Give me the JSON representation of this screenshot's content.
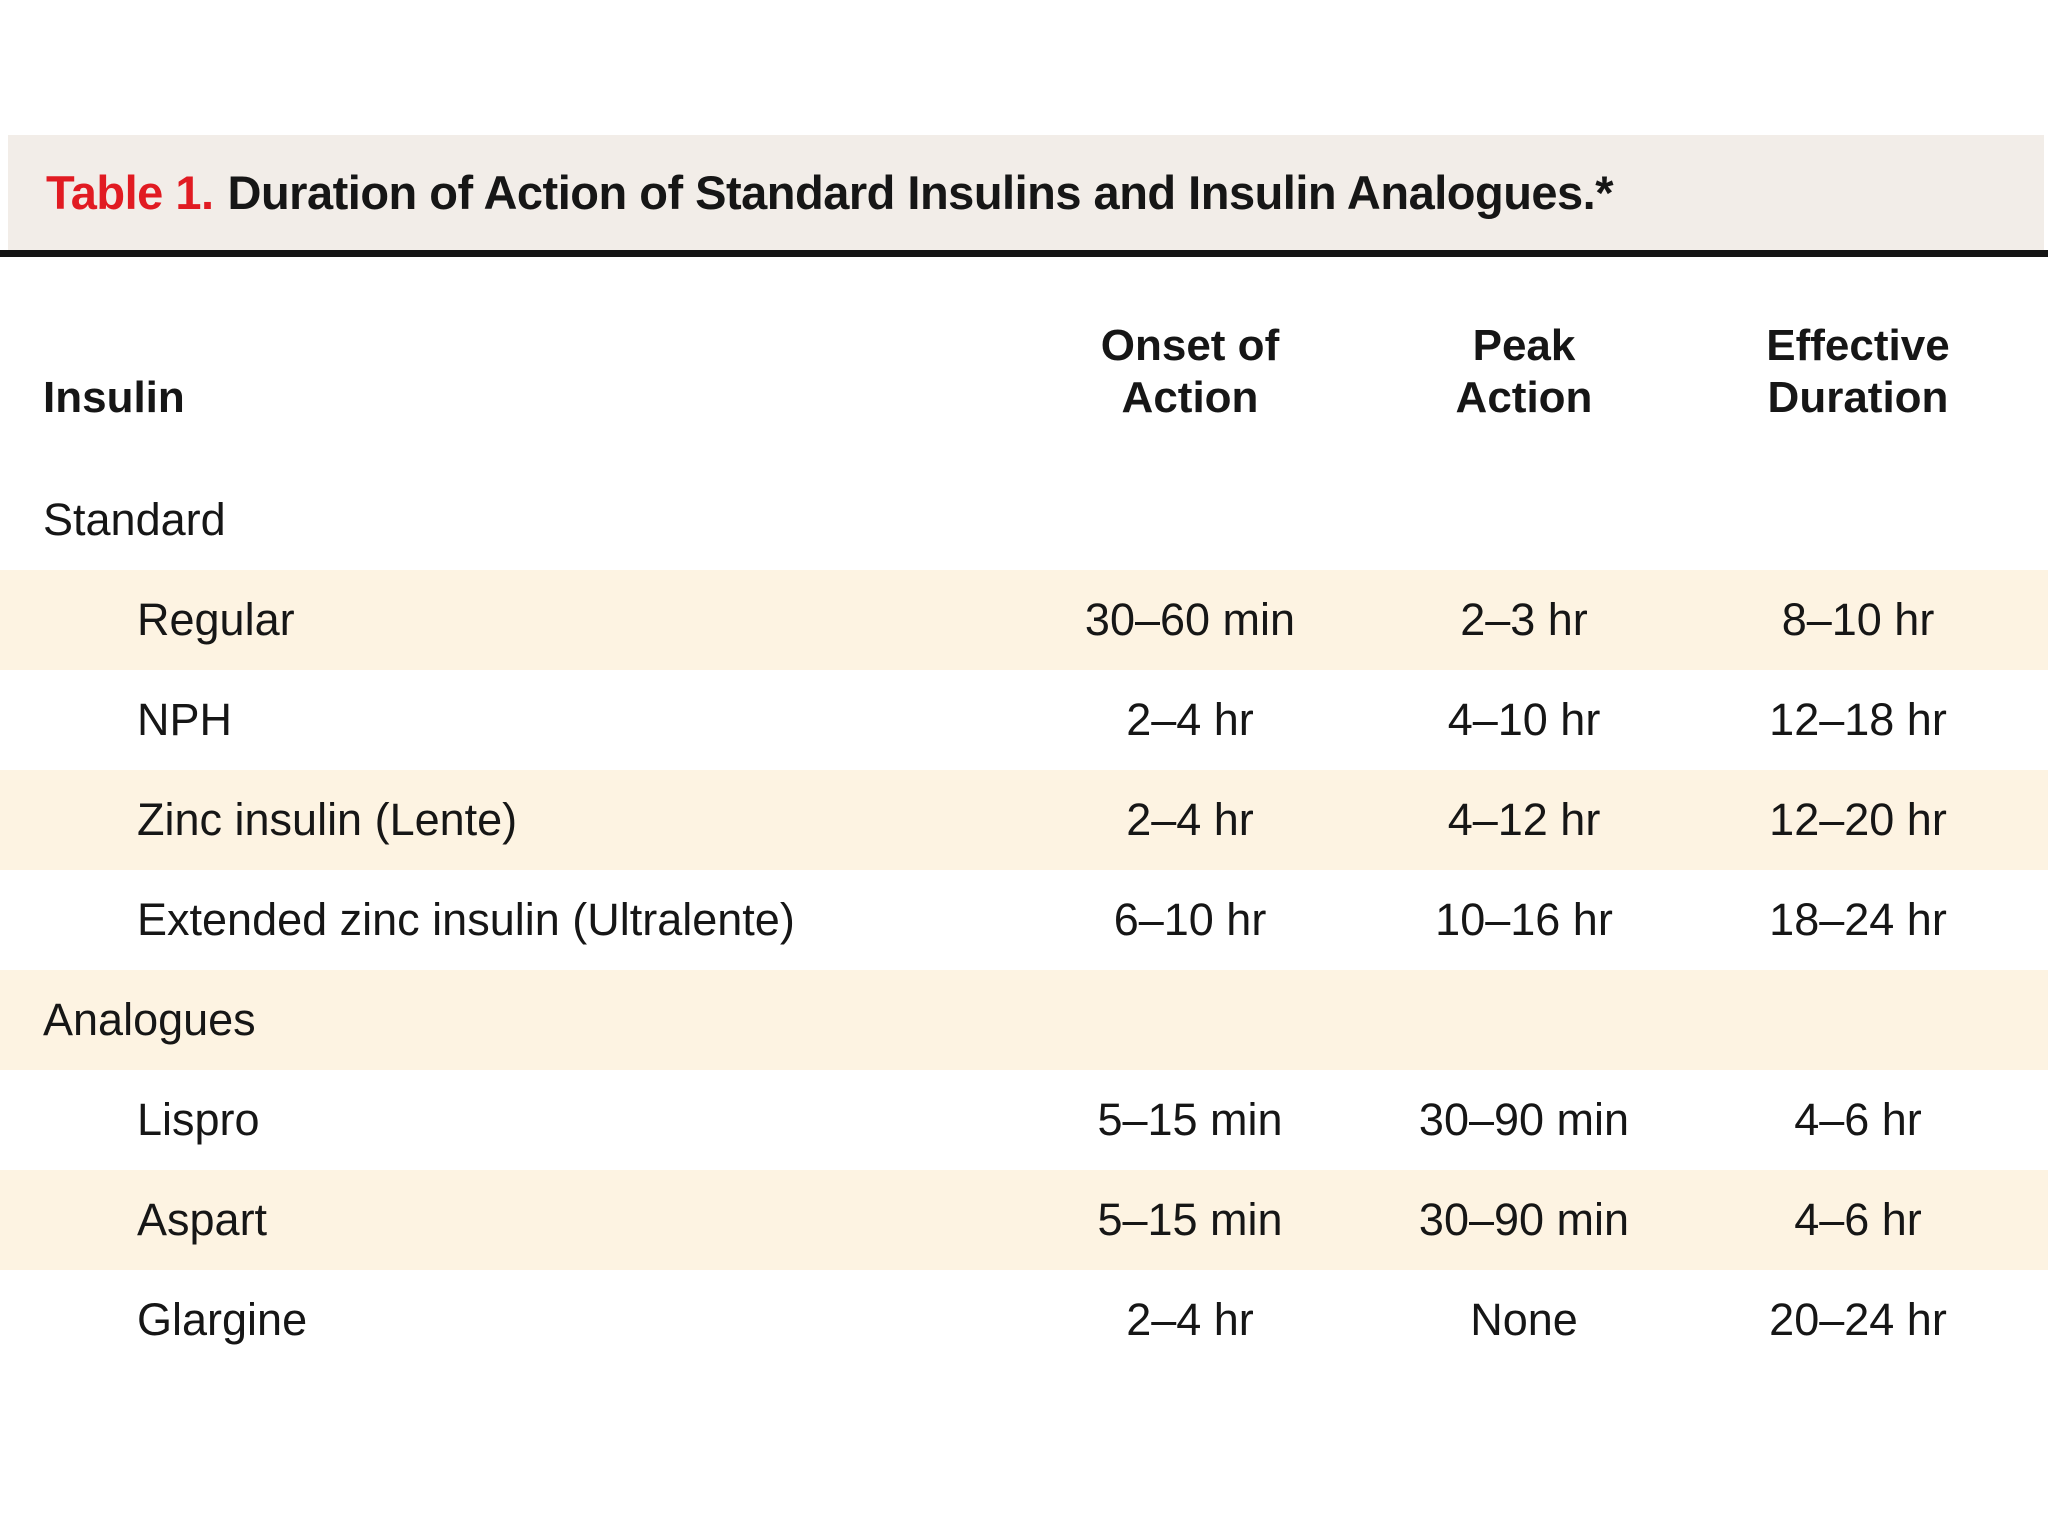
{
  "title": {
    "label": "Table 1.",
    "text": "Duration of Action of Standard Insulins and Insulin Analogues.*"
  },
  "columns": {
    "insulin": "Insulin",
    "onset_line1": "Onset of",
    "onset_line2": "Action",
    "peak_line1": "Peak",
    "peak_line2": "Action",
    "duration_line1": "Effective",
    "duration_line2": "Duration"
  },
  "rows": [
    {
      "name": "Standard",
      "type": "section"
    },
    {
      "name": "Regular",
      "type": "drug",
      "onset": "30–60 min",
      "peak": "2–3 hr",
      "duration": "8–10 hr"
    },
    {
      "name": "NPH",
      "type": "drug",
      "onset": "2–4 hr",
      "peak": "4–10 hr",
      "duration": "12–18 hr"
    },
    {
      "name": "Zinc insulin (Lente)",
      "type": "drug",
      "onset": "2–4 hr",
      "peak": "4–12 hr",
      "duration": "12–20 hr"
    },
    {
      "name": "Extended zinc insulin (Ultralente)",
      "type": "drug",
      "onset": "6–10 hr",
      "peak": "10–16 hr",
      "duration": "18–24 hr"
    },
    {
      "name": "Analogues",
      "type": "section"
    },
    {
      "name": "Lispro",
      "type": "drug",
      "onset": "5–15 min",
      "peak": "30–90 min",
      "duration": "4–6 hr"
    },
    {
      "name": "Aspart",
      "type": "drug",
      "onset": "5–15 min",
      "peak": "30–90 min",
      "duration": "4–6 hr"
    },
    {
      "name": "Glargine",
      "type": "drug",
      "onset": "2–4 hr",
      "peak": "None",
      "duration": "20–24 hr"
    }
  ],
  "colors": {
    "accent_red": "#e11b22",
    "title_band_bg": "#f2ede8",
    "row_highlight_bg": "#fdf3e2",
    "text": "#161616",
    "rule": "#141414"
  }
}
